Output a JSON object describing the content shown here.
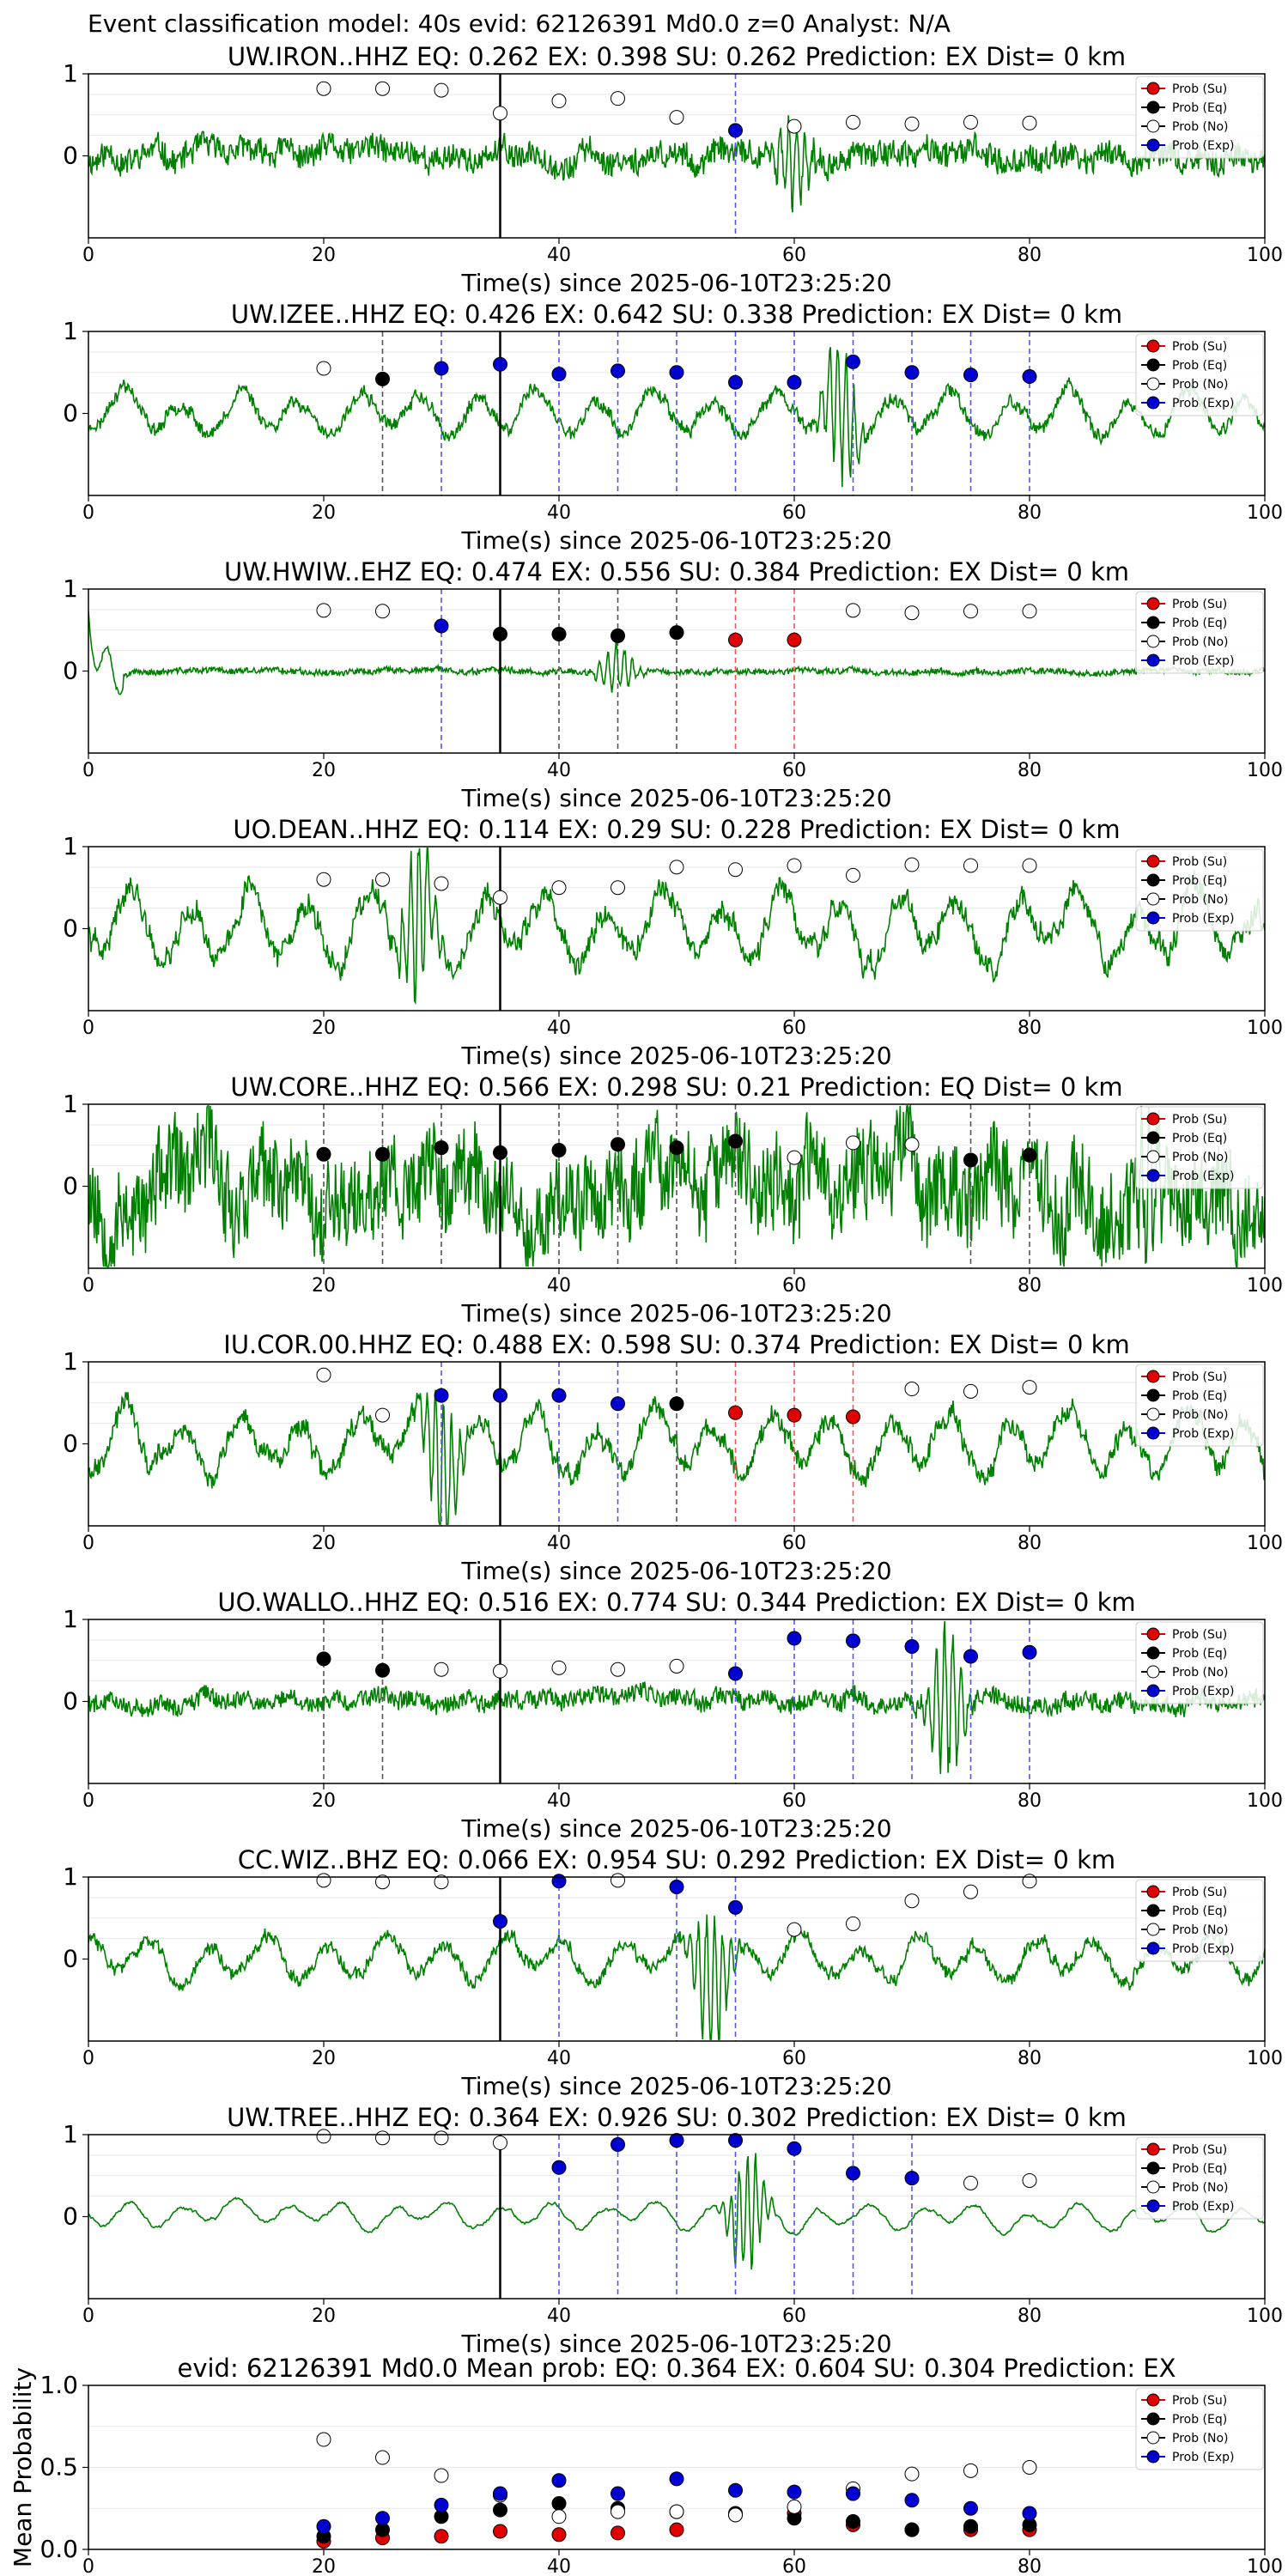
{
  "figure": {
    "suptitle": "Event classification model: 40s evid: 62126391 Md0.0 z=0 Analyst: N/A"
  },
  "legend_labels": [
    "Prob (Su)",
    "Prob (Eq)",
    "Prob (No)",
    "Prob (Exp)"
  ],
  "colors": {
    "waveform": "#008000",
    "su": "#e00000",
    "eq": "#000000",
    "no": "#ffffff",
    "exp": "#0000d0",
    "line_exp": "#5555ee",
    "line_eq": "#555555",
    "line_su": "#ee5555"
  },
  "chart_data": [
    {
      "type": "line",
      "title": "UW.IRON..HHZ   EQ: 0.262  EX: 0.398  SU: 0.262   Prediction: EX    Dist= 0 km",
      "xlabel": "Time(s) since 2025-06-10T23:25:20",
      "xlim": [
        0,
        100
      ],
      "ylim": [
        -1,
        1
      ],
      "grid": true,
      "legend": "right",
      "xticks": [
        "0",
        "20",
        "40",
        "60",
        "80",
        "100"
      ],
      "yticks": [
        "1",
        "0"
      ],
      "pick_time": 35,
      "waveform": {
        "seed": 11,
        "amp": 0.17,
        "style": "noisy",
        "burst_at": 60,
        "burst_amp": 0.5
      },
      "markers": [
        {
          "x": 20,
          "y": 0.82,
          "cls": "no"
        },
        {
          "x": 25,
          "y": 0.82,
          "cls": "no"
        },
        {
          "x": 30,
          "y": 0.8,
          "cls": "no"
        },
        {
          "x": 35,
          "y": 0.52,
          "cls": "no"
        },
        {
          "x": 40,
          "y": 0.67,
          "cls": "no"
        },
        {
          "x": 45,
          "y": 0.7,
          "cls": "no"
        },
        {
          "x": 50,
          "y": 0.47,
          "cls": "no"
        },
        {
          "x": 55,
          "y": 0.31,
          "cls": "exp",
          "line": true
        },
        {
          "x": 60,
          "y": 0.36,
          "cls": "no"
        },
        {
          "x": 65,
          "y": 0.41,
          "cls": "no"
        },
        {
          "x": 70,
          "y": 0.39,
          "cls": "no"
        },
        {
          "x": 75,
          "y": 0.41,
          "cls": "no"
        },
        {
          "x": 80,
          "y": 0.4,
          "cls": "no"
        }
      ]
    },
    {
      "type": "line",
      "title": "UW.IZEE..HHZ   EQ: 0.426  EX: 0.642  SU: 0.338   Prediction: EX    Dist= 0 km",
      "xlabel": "Time(s) since 2025-06-10T23:25:20",
      "xlim": [
        0,
        100
      ],
      "ylim": [
        -1,
        1
      ],
      "grid": true,
      "legend": "right",
      "xticks": [
        "0",
        "20",
        "40",
        "60",
        "80",
        "100"
      ],
      "yticks": [
        "1",
        "0"
      ],
      "pick_time": 35,
      "waveform": {
        "seed": 23,
        "amp": 0.3,
        "style": "wavy",
        "burst_at": 64,
        "burst_amp": 0.8
      },
      "markers": [
        {
          "x": 20,
          "y": 0.55,
          "cls": "no"
        },
        {
          "x": 25,
          "y": 0.42,
          "cls": "eq",
          "line": true
        },
        {
          "x": 30,
          "y": 0.55,
          "cls": "exp",
          "line": true
        },
        {
          "x": 35,
          "y": 0.6,
          "cls": "exp"
        },
        {
          "x": 40,
          "y": 0.48,
          "cls": "exp",
          "line": true
        },
        {
          "x": 45,
          "y": 0.52,
          "cls": "exp",
          "line": true
        },
        {
          "x": 50,
          "y": 0.5,
          "cls": "exp",
          "line": true
        },
        {
          "x": 55,
          "y": 0.38,
          "cls": "exp",
          "line": true
        },
        {
          "x": 60,
          "y": 0.38,
          "cls": "exp",
          "line": true
        },
        {
          "x": 65,
          "y": 0.63,
          "cls": "exp",
          "line": true
        },
        {
          "x": 70,
          "y": 0.5,
          "cls": "exp",
          "line": true
        },
        {
          "x": 75,
          "y": 0.47,
          "cls": "exp",
          "line": true
        },
        {
          "x": 80,
          "y": 0.45,
          "cls": "exp",
          "line": true
        }
      ]
    },
    {
      "type": "line",
      "title": "UW.HWIW..EHZ   EQ: 0.474  EX: 0.556  SU: 0.384   Prediction: EX    Dist= 0 km",
      "xlabel": "Time(s) since 2025-06-10T23:25:20",
      "xlim": [
        0,
        100
      ],
      "ylim": [
        -1,
        1
      ],
      "grid": true,
      "legend": "right",
      "xticks": [
        "0",
        "20",
        "40",
        "60",
        "80",
        "100"
      ],
      "yticks": [
        "1",
        "0"
      ],
      "pick_time": 35,
      "waveform": {
        "seed": 37,
        "amp": 0.05,
        "style": "flat",
        "burst_at": 45,
        "burst_amp": 0.3
      },
      "markers": [
        {
          "x": 20,
          "y": 0.74,
          "cls": "no"
        },
        {
          "x": 25,
          "y": 0.73,
          "cls": "no"
        },
        {
          "x": 30,
          "y": 0.55,
          "cls": "exp",
          "line": true
        },
        {
          "x": 35,
          "y": 0.45,
          "cls": "eq"
        },
        {
          "x": 40,
          "y": 0.45,
          "cls": "eq",
          "line": true
        },
        {
          "x": 45,
          "y": 0.43,
          "cls": "eq",
          "line": true
        },
        {
          "x": 50,
          "y": 0.47,
          "cls": "eq",
          "line": true
        },
        {
          "x": 55,
          "y": 0.38,
          "cls": "su",
          "line": true
        },
        {
          "x": 60,
          "y": 0.38,
          "cls": "su",
          "line": true
        },
        {
          "x": 65,
          "y": 0.74,
          "cls": "no"
        },
        {
          "x": 70,
          "y": 0.71,
          "cls": "no"
        },
        {
          "x": 75,
          "y": 0.73,
          "cls": "no"
        },
        {
          "x": 80,
          "y": 0.73,
          "cls": "no"
        }
      ]
    },
    {
      "type": "line",
      "title": "UO.DEAN..HHZ   EQ: 0.114  EX: 0.29  SU: 0.228   Prediction: EX    Dist= 0 km",
      "xlabel": "Time(s) since 2025-06-10T23:25:20",
      "xlim": [
        0,
        100
      ],
      "ylim": [
        -1,
        1
      ],
      "grid": true,
      "legend": "right",
      "xticks": [
        "0",
        "20",
        "40",
        "60",
        "80",
        "100"
      ],
      "yticks": [
        "1",
        "0"
      ],
      "pick_time": 35,
      "waveform": {
        "seed": 41,
        "amp": 0.5,
        "style": "wavy",
        "burst_at": 28,
        "burst_amp": 0.9
      },
      "markers": [
        {
          "x": 20,
          "y": 0.6,
          "cls": "no"
        },
        {
          "x": 25,
          "y": 0.6,
          "cls": "no"
        },
        {
          "x": 30,
          "y": 0.55,
          "cls": "no"
        },
        {
          "x": 35,
          "y": 0.38,
          "cls": "no"
        },
        {
          "x": 40,
          "y": 0.5,
          "cls": "no"
        },
        {
          "x": 45,
          "y": 0.5,
          "cls": "no"
        },
        {
          "x": 50,
          "y": 0.75,
          "cls": "no"
        },
        {
          "x": 55,
          "y": 0.72,
          "cls": "no"
        },
        {
          "x": 60,
          "y": 0.77,
          "cls": "no"
        },
        {
          "x": 65,
          "y": 0.65,
          "cls": "no"
        },
        {
          "x": 70,
          "y": 0.78,
          "cls": "no"
        },
        {
          "x": 75,
          "y": 0.77,
          "cls": "no"
        },
        {
          "x": 80,
          "y": 0.77,
          "cls": "no"
        }
      ]
    },
    {
      "type": "line",
      "title": "UW.CORE..HHZ   EQ: 0.566  EX: 0.298  SU: 0.21   Prediction: EQ    Dist= 0 km",
      "xlabel": "Time(s) since 2025-06-10T23:25:20",
      "xlim": [
        0,
        100
      ],
      "ylim": [
        -1,
        1
      ],
      "grid": true,
      "legend": "right",
      "xticks": [
        "0",
        "20",
        "40",
        "60",
        "80",
        "100"
      ],
      "yticks": [
        "1",
        "0"
      ],
      "pick_time": 35,
      "waveform": {
        "seed": 53,
        "amp": 0.6,
        "style": "noisy",
        "burst_at": 90,
        "burst_amp": 0.9
      },
      "markers": [
        {
          "x": 20,
          "y": 0.39,
          "cls": "eq",
          "line": true
        },
        {
          "x": 25,
          "y": 0.39,
          "cls": "eq",
          "line": true
        },
        {
          "x": 30,
          "y": 0.47,
          "cls": "eq",
          "line": true
        },
        {
          "x": 35,
          "y": 0.41,
          "cls": "eq"
        },
        {
          "x": 40,
          "y": 0.44,
          "cls": "eq",
          "line": true
        },
        {
          "x": 45,
          "y": 0.51,
          "cls": "eq",
          "line": true
        },
        {
          "x": 50,
          "y": 0.47,
          "cls": "eq",
          "line": true
        },
        {
          "x": 55,
          "y": 0.55,
          "cls": "eq",
          "line": true
        },
        {
          "x": 60,
          "y": 0.35,
          "cls": "no"
        },
        {
          "x": 65,
          "y": 0.53,
          "cls": "no"
        },
        {
          "x": 70,
          "y": 0.51,
          "cls": "no"
        },
        {
          "x": 75,
          "y": 0.32,
          "cls": "eq",
          "line": true
        },
        {
          "x": 80,
          "y": 0.38,
          "cls": "eq",
          "line": true
        }
      ]
    },
    {
      "type": "line",
      "title": "IU.COR.00.HHZ   EQ: 0.488  EX: 0.598  SU: 0.374   Prediction: EX    Dist= 0 km",
      "xlabel": "Time(s) since 2025-06-10T23:25:20",
      "xlim": [
        0,
        100
      ],
      "ylim": [
        -1,
        1
      ],
      "grid": true,
      "legend": "right",
      "xticks": [
        "0",
        "20",
        "40",
        "60",
        "80",
        "100"
      ],
      "yticks": [
        "1",
        "0"
      ],
      "pick_time": 35,
      "waveform": {
        "seed": 67,
        "amp": 0.45,
        "style": "wavy",
        "burst_at": 30,
        "burst_amp": 1.0
      },
      "markers": [
        {
          "x": 20,
          "y": 0.84,
          "cls": "no"
        },
        {
          "x": 25,
          "y": 0.35,
          "cls": "no"
        },
        {
          "x": 30,
          "y": 0.59,
          "cls": "exp",
          "line": true
        },
        {
          "x": 35,
          "y": 0.59,
          "cls": "exp"
        },
        {
          "x": 40,
          "y": 0.59,
          "cls": "exp",
          "line": true
        },
        {
          "x": 45,
          "y": 0.49,
          "cls": "exp",
          "line": true
        },
        {
          "x": 50,
          "y": 0.49,
          "cls": "eq",
          "line": true
        },
        {
          "x": 55,
          "y": 0.38,
          "cls": "su",
          "line": true
        },
        {
          "x": 60,
          "y": 0.35,
          "cls": "su",
          "line": true
        },
        {
          "x": 65,
          "y": 0.33,
          "cls": "su",
          "line": true
        },
        {
          "x": 70,
          "y": 0.67,
          "cls": "no"
        },
        {
          "x": 75,
          "y": 0.64,
          "cls": "no"
        },
        {
          "x": 80,
          "y": 0.69,
          "cls": "no"
        }
      ]
    },
    {
      "type": "line",
      "title": "UO.WALLO..HHZ   EQ: 0.516  EX: 0.774  SU: 0.344   Prediction: EX    Dist= 0 km",
      "xlabel": "Time(s) since 2025-06-10T23:25:20",
      "xlim": [
        0,
        100
      ],
      "ylim": [
        -1,
        1
      ],
      "grid": true,
      "legend": "right",
      "xticks": [
        "0",
        "20",
        "40",
        "60",
        "80",
        "100"
      ],
      "yticks": [
        "1",
        "0"
      ],
      "pick_time": 35,
      "waveform": {
        "seed": 79,
        "amp": 0.12,
        "style": "noisy",
        "burst_at": 73,
        "burst_amp": 0.9
      },
      "markers": [
        {
          "x": 20,
          "y": 0.52,
          "cls": "eq",
          "line": true
        },
        {
          "x": 25,
          "y": 0.38,
          "cls": "eq",
          "line": true
        },
        {
          "x": 30,
          "y": 0.39,
          "cls": "no"
        },
        {
          "x": 35,
          "y": 0.37,
          "cls": "no"
        },
        {
          "x": 40,
          "y": 0.41,
          "cls": "no"
        },
        {
          "x": 45,
          "y": 0.39,
          "cls": "no"
        },
        {
          "x": 50,
          "y": 0.43,
          "cls": "no"
        },
        {
          "x": 55,
          "y": 0.34,
          "cls": "exp",
          "line": true
        },
        {
          "x": 60,
          "y": 0.77,
          "cls": "exp",
          "line": true
        },
        {
          "x": 65,
          "y": 0.74,
          "cls": "exp",
          "line": true
        },
        {
          "x": 70,
          "y": 0.67,
          "cls": "exp",
          "line": true
        },
        {
          "x": 75,
          "y": 0.55,
          "cls": "exp",
          "line": true
        },
        {
          "x": 80,
          "y": 0.6,
          "cls": "exp",
          "line": true
        }
      ]
    },
    {
      "type": "line",
      "title": "CC.WIZ..BHZ   EQ: 0.066  EX: 0.954  SU: 0.292   Prediction: EX    Dist= 0 km",
      "xlabel": "Time(s) since 2025-06-10T23:25:20",
      "xlim": [
        0,
        100
      ],
      "ylim": [
        -1,
        1
      ],
      "grid": true,
      "legend": "right",
      "xticks": [
        "0",
        "20",
        "40",
        "60",
        "80",
        "100"
      ],
      "yticks": [
        "1",
        "0"
      ],
      "pick_time": 35,
      "waveform": {
        "seed": 83,
        "amp": 0.3,
        "style": "wavy",
        "burst_at": 53,
        "burst_amp": 0.9
      },
      "markers": [
        {
          "x": 20,
          "y": 0.96,
          "cls": "no"
        },
        {
          "x": 25,
          "y": 0.94,
          "cls": "no"
        },
        {
          "x": 30,
          "y": 0.94,
          "cls": "no"
        },
        {
          "x": 35,
          "y": 0.46,
          "cls": "exp"
        },
        {
          "x": 40,
          "y": 0.95,
          "cls": "exp",
          "line": true
        },
        {
          "x": 45,
          "y": 0.96,
          "cls": "no"
        },
        {
          "x": 50,
          "y": 0.88,
          "cls": "exp",
          "line": true
        },
        {
          "x": 55,
          "y": 0.63,
          "cls": "exp",
          "line": true
        },
        {
          "x": 60,
          "y": 0.36,
          "cls": "no"
        },
        {
          "x": 65,
          "y": 0.43,
          "cls": "no"
        },
        {
          "x": 70,
          "y": 0.71,
          "cls": "no"
        },
        {
          "x": 75,
          "y": 0.82,
          "cls": "no"
        },
        {
          "x": 80,
          "y": 0.95,
          "cls": "no"
        }
      ]
    },
    {
      "type": "line",
      "title": "UW.TREE..HHZ   EQ: 0.364  EX: 0.926  SU: 0.302   Prediction: EX    Dist= 0 km",
      "xlabel": "Time(s) since 2025-06-10T23:25:20",
      "xlim": [
        0,
        100
      ],
      "ylim": [
        -1,
        1
      ],
      "grid": true,
      "legend": "right",
      "xticks": [
        "0",
        "20",
        "40",
        "60",
        "80",
        "100"
      ],
      "yticks": [
        "1",
        "0"
      ],
      "pick_time": 35,
      "waveform": {
        "seed": 97,
        "amp": 0.2,
        "style": "smooth",
        "burst_at": 56,
        "burst_amp": 0.7
      },
      "markers": [
        {
          "x": 20,
          "y": 0.98,
          "cls": "no"
        },
        {
          "x": 25,
          "y": 0.96,
          "cls": "no"
        },
        {
          "x": 30,
          "y": 0.96,
          "cls": "no"
        },
        {
          "x": 35,
          "y": 0.9,
          "cls": "no"
        },
        {
          "x": 40,
          "y": 0.6,
          "cls": "exp",
          "line": true
        },
        {
          "x": 45,
          "y": 0.88,
          "cls": "exp",
          "line": true
        },
        {
          "x": 50,
          "y": 0.93,
          "cls": "exp",
          "line": true
        },
        {
          "x": 55,
          "y": 0.93,
          "cls": "exp",
          "line": true
        },
        {
          "x": 60,
          "y": 0.83,
          "cls": "exp",
          "line": true
        },
        {
          "x": 65,
          "y": 0.53,
          "cls": "exp",
          "line": true
        },
        {
          "x": 70,
          "y": 0.47,
          "cls": "exp",
          "line": true
        },
        {
          "x": 75,
          "y": 0.41,
          "cls": "no"
        },
        {
          "x": 80,
          "y": 0.44,
          "cls": "no"
        }
      ]
    },
    {
      "type": "scatter",
      "title": "evid: 62126391  Md0.0   Mean prob:    EQ: 0.364  EX: 0.604  SU: 0.304   Prediction: EX",
      "xlabel": "",
      "ylabel": "Mean Probability",
      "xlim": [
        0,
        100
      ],
      "ylim": [
        0,
        1
      ],
      "grid": true,
      "legend": "right",
      "xticks": [
        "0",
        "20",
        "40",
        "60",
        "80",
        "100"
      ],
      "yticks": [
        "1.0",
        "0.5",
        "0.0"
      ],
      "x": [
        20,
        25,
        30,
        35,
        40,
        45,
        50,
        55,
        60,
        65,
        70,
        75,
        80
      ],
      "series": [
        {
          "name": "Prob (Su)",
          "cls": "su",
          "values": [
            0.05,
            0.07,
            0.08,
            0.11,
            0.09,
            0.1,
            0.12,
            0.21,
            0.22,
            0.15,
            0.12,
            0.12,
            0.12
          ]
        },
        {
          "name": "Prob (Eq)",
          "cls": "eq",
          "values": [
            0.08,
            0.12,
            0.2,
            0.24,
            0.28,
            0.25,
            0.23,
            0.22,
            0.19,
            0.17,
            0.12,
            0.14,
            0.15
          ]
        },
        {
          "name": "Prob (No)",
          "cls": "no",
          "values": [
            0.67,
            0.56,
            0.45,
            0.33,
            0.2,
            0.23,
            0.23,
            0.21,
            0.26,
            0.37,
            0.46,
            0.48,
            0.5
          ]
        },
        {
          "name": "Prob (Exp)",
          "cls": "exp",
          "values": [
            0.14,
            0.19,
            0.27,
            0.34,
            0.42,
            0.34,
            0.43,
            0.36,
            0.35,
            0.34,
            0.3,
            0.25,
            0.22
          ]
        }
      ]
    }
  ]
}
